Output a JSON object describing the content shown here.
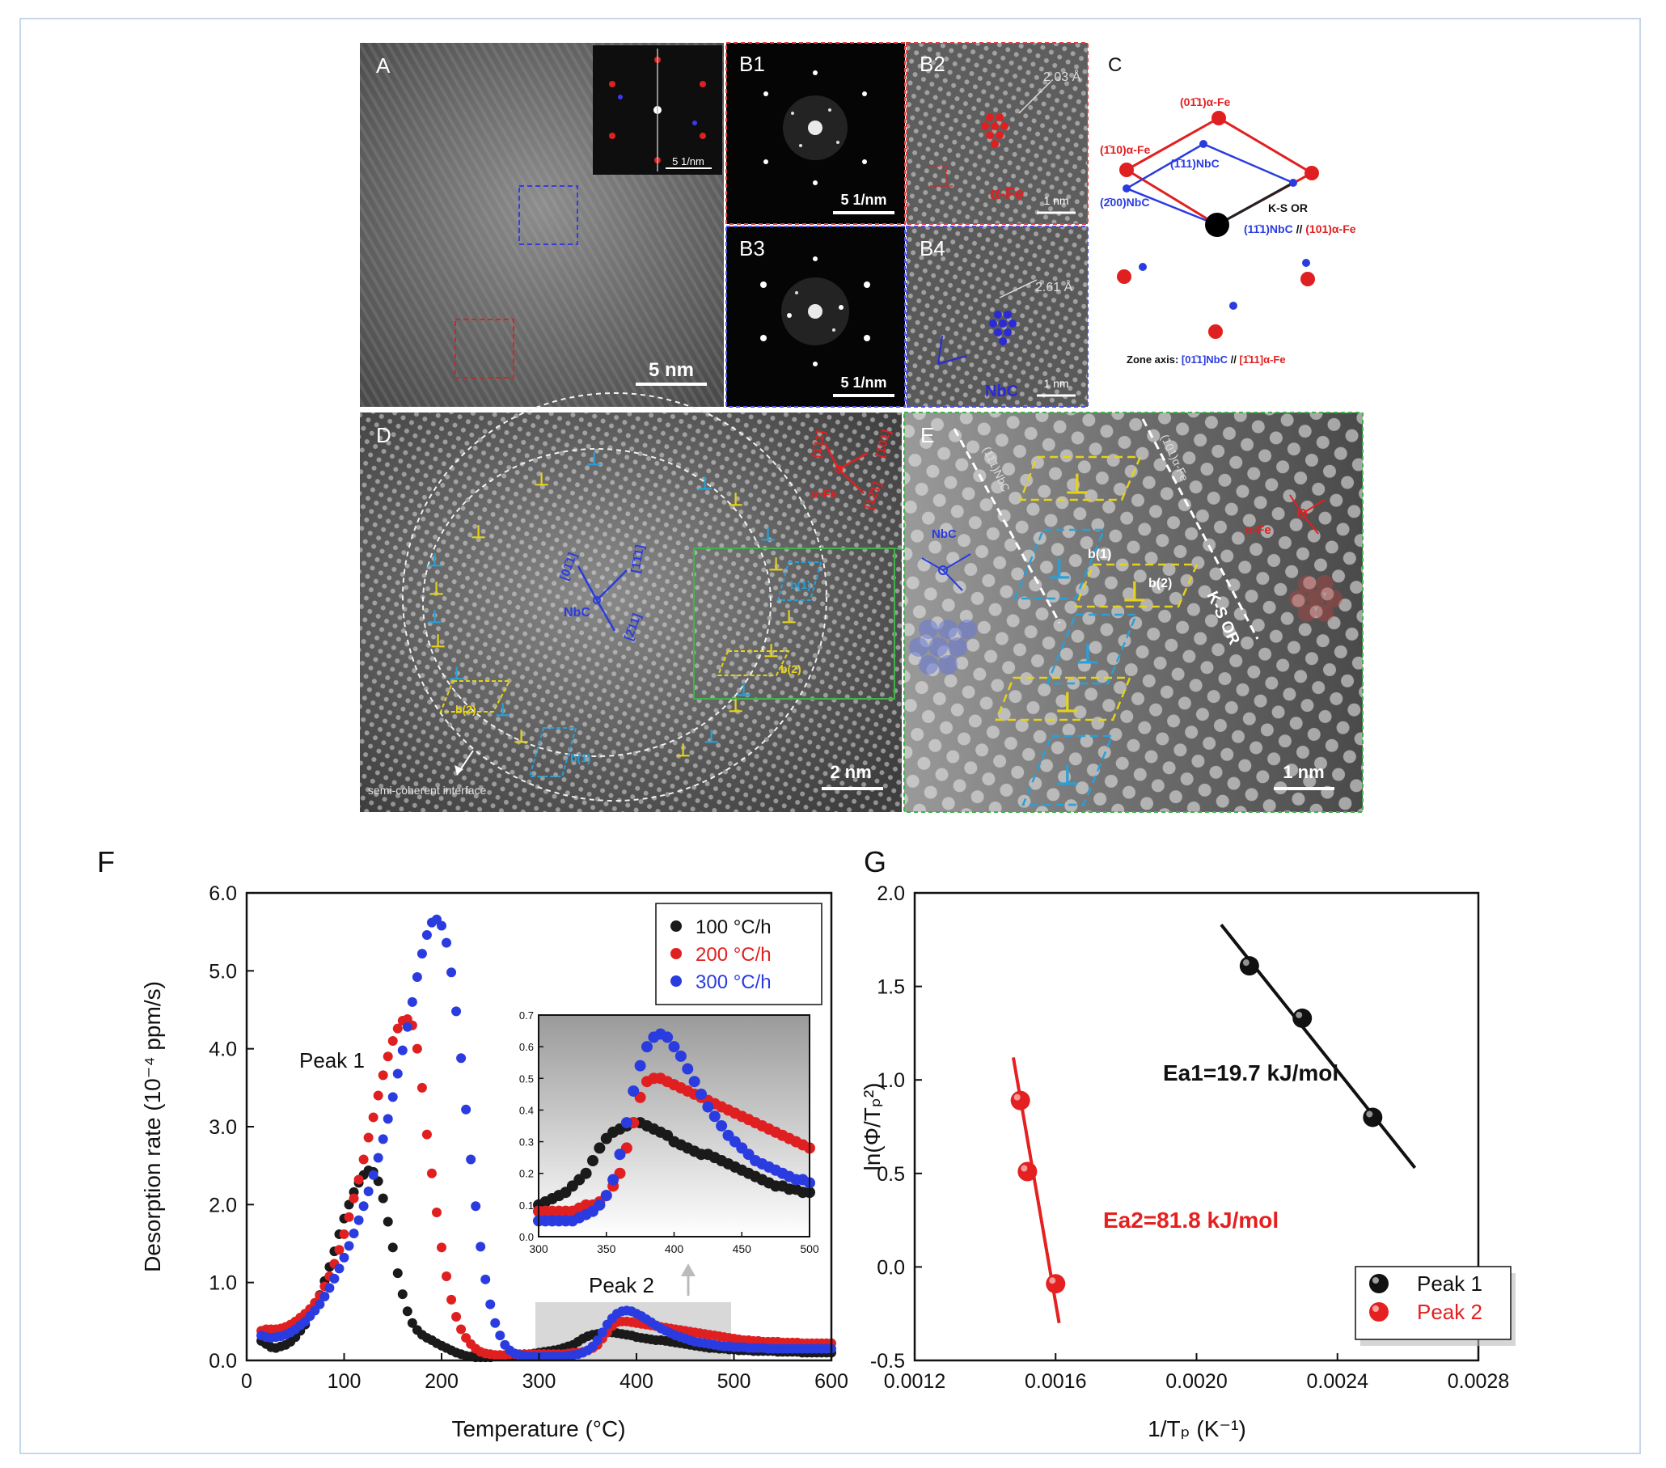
{
  "panels": {
    "A": {
      "letter": "A",
      "scale": "5 nm",
      "inset_scale": "5 1/nm"
    },
    "B1": {
      "letter": "B1",
      "scale": "5 1/nm"
    },
    "B2": {
      "letter": "B2",
      "spacing": "2.03 Å",
      "phase": "α-Fe",
      "scale": "1 nm"
    },
    "B3": {
      "letter": "B3",
      "scale": "5 1/nm"
    },
    "B4": {
      "letter": "B4",
      "spacing": "2.61 Å",
      "phase": "NbC",
      "scale": "1 nm"
    },
    "C": {
      "letter": "C",
      "l_011fe": "(01̄1)α-Fe",
      "l_110fe": "(1̄10)α-Fe",
      "l_111nbc": "(1̄11)NbC",
      "l_200nbc": "(2̄00)NbC",
      "ks": "K-S OR",
      "parallel_nbc": "(11̄1)NbC",
      "parallel_sep": " // ",
      "parallel_fe": "(101)α-Fe",
      "zone_prefix": "Zone axis: ",
      "zone_nbc": "[01̄1]NbC",
      "zone_sep": " // ",
      "zone_fe": "[1̄11]α-Fe"
    },
    "D": {
      "letter": "D",
      "scale": "2 nm",
      "fe": "α-Fe",
      "fe_a": "[1̄11]",
      "fe_b": "[101]",
      "fe_c": "[12̄1]",
      "nbc": "NbC",
      "nbc_a": "[01̄1]",
      "nbc_b": "[1̄1̄1]",
      "nbc_c": "[2̄11]",
      "interface": "semi-coherent interface",
      "b1": "b(1)",
      "b2": "b(2)"
    },
    "E": {
      "letter": "E",
      "scale": "1 nm",
      "nbc": "NbC",
      "fe": "α-Fe",
      "ks": "K-S OR",
      "plane_nbc": "(11̄1)NbC",
      "plane_fe": "(101)α-Fe",
      "b1": "b(1)",
      "b2": "b(2)"
    },
    "F": {
      "letter": "F"
    },
    "G": {
      "letter": "G"
    }
  },
  "colors": {
    "fe": "#e02020",
    "nbc": "#2020d0",
    "yellow": "#e6d21a",
    "cyan": "#28a0d8",
    "green": "#4cb84c"
  },
  "chart_data": [
    {
      "type": "scatter",
      "title": "",
      "xlabel": "Temperature (°C)",
      "ylabel": "Desorption rate (10⁻⁴ ppm/s)",
      "xlim": [
        0,
        600
      ],
      "ylim": [
        0,
        6
      ],
      "xticks": [
        0,
        100,
        200,
        300,
        400,
        500,
        600
      ],
      "yticks": [
        0,
        1,
        2,
        3,
        4,
        5,
        6
      ],
      "xtick_labels": [
        "0",
        "100",
        "200",
        "300",
        "400",
        "500",
        "600"
      ],
      "ytick_labels": [
        "0.0",
        "1.0",
        "2.0",
        "3.0",
        "4.0",
        "5.0",
        "6.0"
      ],
      "legend_position": "top-right",
      "annotations": [
        "Peak 1",
        "Peak 2"
      ],
      "series": [
        {
          "name": "100 °C/h",
          "color": "#1a1a1a",
          "x": [
            15,
            20,
            25,
            30,
            35,
            40,
            45,
            50,
            55,
            60,
            65,
            70,
            75,
            80,
            85,
            90,
            95,
            100,
            105,
            110,
            115,
            120,
            125,
            130,
            135,
            140,
            145,
            150,
            155,
            160,
            165,
            170,
            175,
            180,
            185,
            190,
            195,
            200,
            205,
            210,
            215,
            220,
            225,
            230,
            235,
            240,
            245,
            250,
            255,
            260,
            265,
            270,
            275,
            280,
            285,
            290,
            295,
            300,
            305,
            310,
            315,
            320,
            325,
            330,
            335,
            340,
            345,
            350,
            355,
            360,
            365,
            370,
            375,
            380,
            385,
            390,
            395,
            400,
            405,
            410,
            415,
            420,
            425,
            430,
            435,
            440,
            445,
            450,
            455,
            460,
            465,
            470,
            475,
            480,
            485,
            490,
            495,
            500,
            505,
            510,
            515,
            520,
            525,
            530,
            535,
            540,
            545,
            550,
            555,
            560,
            565,
            570,
            575,
            580,
            585,
            590,
            595,
            600
          ],
          "y": [
            0.25,
            0.21,
            0.17,
            0.16,
            0.18,
            0.2,
            0.24,
            0.3,
            0.38,
            0.46,
            0.58,
            0.7,
            0.84,
            1.02,
            1.2,
            1.4,
            1.62,
            1.82,
            2.0,
            2.16,
            2.28,
            2.38,
            2.44,
            2.42,
            2.3,
            2.08,
            1.78,
            1.45,
            1.12,
            0.85,
            0.63,
            0.48,
            0.39,
            0.33,
            0.29,
            0.26,
            0.22,
            0.19,
            0.16,
            0.13,
            0.1,
            0.08,
            0.06,
            0.05,
            0.04,
            0.04,
            0.04,
            0.04,
            0.05,
            0.05,
            0.06,
            0.06,
            0.07,
            0.07,
            0.08,
            0.08,
            0.09,
            0.1,
            0.11,
            0.12,
            0.13,
            0.14,
            0.16,
            0.18,
            0.2,
            0.24,
            0.28,
            0.31,
            0.33,
            0.34,
            0.35,
            0.36,
            0.36,
            0.35,
            0.34,
            0.33,
            0.32,
            0.3,
            0.29,
            0.28,
            0.27,
            0.26,
            0.26,
            0.25,
            0.24,
            0.23,
            0.22,
            0.21,
            0.2,
            0.19,
            0.18,
            0.17,
            0.16,
            0.16,
            0.15,
            0.15,
            0.14,
            0.14,
            0.13,
            0.13,
            0.13,
            0.12,
            0.12,
            0.12,
            0.12,
            0.12,
            0.11,
            0.11,
            0.11,
            0.11,
            0.11,
            0.1,
            0.1,
            0.1,
            0.1,
            0.1,
            0.1,
            0.1
          ]
        },
        {
          "name": "200 °C/h",
          "color": "#e02020",
          "x": [
            15,
            20,
            25,
            30,
            35,
            40,
            45,
            50,
            55,
            60,
            65,
            70,
            75,
            80,
            85,
            90,
            95,
            100,
            105,
            110,
            115,
            120,
            125,
            130,
            135,
            140,
            145,
            150,
            155,
            160,
            165,
            170,
            175,
            180,
            185,
            190,
            195,
            200,
            205,
            210,
            215,
            220,
            225,
            230,
            235,
            240,
            245,
            250,
            255,
            260,
            265,
            270,
            275,
            280,
            285,
            290,
            295,
            300,
            305,
            310,
            315,
            320,
            325,
            330,
            335,
            340,
            345,
            350,
            355,
            360,
            365,
            370,
            375,
            380,
            385,
            390,
            395,
            400,
            405,
            410,
            415,
            420,
            425,
            430,
            435,
            440,
            445,
            450,
            455,
            460,
            465,
            470,
            475,
            480,
            485,
            490,
            495,
            500,
            505,
            510,
            515,
            520,
            525,
            530,
            535,
            540,
            545,
            550,
            555,
            560,
            565,
            570,
            575,
            580,
            585,
            590,
            595,
            600
          ],
          "y": [
            0.38,
            0.4,
            0.4,
            0.4,
            0.41,
            0.43,
            0.46,
            0.5,
            0.55,
            0.6,
            0.66,
            0.74,
            0.83,
            0.95,
            1.08,
            1.24,
            1.42,
            1.62,
            1.84,
            2.08,
            2.32,
            2.58,
            2.86,
            3.12,
            3.4,
            3.66,
            3.9,
            4.1,
            4.26,
            4.36,
            4.38,
            4.3,
            4.0,
            3.5,
            2.9,
            2.4,
            1.9,
            1.45,
            1.08,
            0.78,
            0.56,
            0.4,
            0.29,
            0.21,
            0.15,
            0.11,
            0.09,
            0.08,
            0.07,
            0.07,
            0.07,
            0.08,
            0.08,
            0.08,
            0.08,
            0.08,
            0.08,
            0.08,
            0.08,
            0.08,
            0.08,
            0.08,
            0.08,
            0.09,
            0.1,
            0.1,
            0.11,
            0.13,
            0.16,
            0.2,
            0.28,
            0.36,
            0.44,
            0.49,
            0.5,
            0.5,
            0.49,
            0.48,
            0.47,
            0.46,
            0.45,
            0.44,
            0.43,
            0.42,
            0.41,
            0.4,
            0.39,
            0.38,
            0.37,
            0.36,
            0.35,
            0.34,
            0.33,
            0.32,
            0.31,
            0.3,
            0.29,
            0.28,
            0.27,
            0.26,
            0.26,
            0.25,
            0.25,
            0.24,
            0.24,
            0.24,
            0.24,
            0.23,
            0.23,
            0.23,
            0.23,
            0.22,
            0.22,
            0.22,
            0.22,
            0.22,
            0.22,
            0.22
          ]
        },
        {
          "name": "300 °C/h",
          "color": "#2a3ce0",
          "x": [
            15,
            20,
            25,
            30,
            35,
            40,
            45,
            50,
            55,
            60,
            65,
            70,
            75,
            80,
            85,
            90,
            95,
            100,
            105,
            110,
            115,
            120,
            125,
            130,
            135,
            140,
            145,
            150,
            155,
            160,
            165,
            170,
            175,
            180,
            185,
            190,
            195,
            200,
            205,
            210,
            215,
            220,
            225,
            230,
            235,
            240,
            245,
            250,
            255,
            260,
            265,
            270,
            275,
            280,
            285,
            290,
            295,
            300,
            305,
            310,
            315,
            320,
            325,
            330,
            335,
            340,
            345,
            350,
            355,
            360,
            365,
            370,
            375,
            380,
            385,
            390,
            395,
            400,
            405,
            410,
            415,
            420,
            425,
            430,
            435,
            440,
            445,
            450,
            455,
            460,
            465,
            470,
            475,
            480,
            485,
            490,
            495,
            500,
            505,
            510,
            515,
            520,
            525,
            530,
            535,
            540,
            545,
            550,
            555,
            560,
            565,
            570,
            575,
            580,
            585,
            590,
            595,
            600
          ],
          "y": [
            0.32,
            0.3,
            0.29,
            0.3,
            0.31,
            0.33,
            0.36,
            0.4,
            0.45,
            0.5,
            0.57,
            0.64,
            0.72,
            0.82,
            0.93,
            1.05,
            1.18,
            1.32,
            1.47,
            1.63,
            1.8,
            1.98,
            2.17,
            2.38,
            2.6,
            2.84,
            3.1,
            3.38,
            3.68,
            3.98,
            4.28,
            4.6,
            4.92,
            5.22,
            5.46,
            5.62,
            5.66,
            5.58,
            5.36,
            4.98,
            4.48,
            3.88,
            3.22,
            2.58,
            1.98,
            1.46,
            1.04,
            0.72,
            0.48,
            0.32,
            0.2,
            0.13,
            0.09,
            0.07,
            0.06,
            0.05,
            0.05,
            0.05,
            0.05,
            0.05,
            0.05,
            0.05,
            0.05,
            0.06,
            0.07,
            0.08,
            0.1,
            0.13,
            0.18,
            0.26,
            0.36,
            0.46,
            0.54,
            0.6,
            0.63,
            0.64,
            0.63,
            0.6,
            0.57,
            0.53,
            0.49,
            0.45,
            0.41,
            0.38,
            0.35,
            0.32,
            0.3,
            0.28,
            0.26,
            0.24,
            0.23,
            0.22,
            0.21,
            0.2,
            0.19,
            0.18,
            0.18,
            0.17,
            0.17,
            0.17,
            0.16,
            0.16,
            0.16,
            0.16,
            0.15,
            0.15,
            0.15,
            0.15,
            0.15,
            0.15,
            0.15,
            0.15,
            0.15,
            0.15,
            0.15,
            0.15,
            0.15,
            0.15
          ]
        }
      ],
      "inset": {
        "xlim": [
          300,
          500
        ],
        "ylim": [
          0,
          0.7
        ],
        "xticks": [
          300,
          350,
          400,
          450,
          500
        ],
        "yticks": [
          0,
          0.1,
          0.2,
          0.3,
          0.4,
          0.5,
          0.6,
          0.7
        ],
        "xtick_labels": [
          "300",
          "350",
          "400",
          "450",
          "500"
        ],
        "ytick_labels": [
          "0.0",
          "0.1",
          "0.2",
          "0.3",
          "0.4",
          "0.5",
          "0.6",
          "0.7"
        ]
      }
    },
    {
      "type": "scatter",
      "title": "",
      "xlabel": "1/Tₚ (K⁻¹)",
      "ylabel": "ln(Φ/Tₚ²)",
      "xlim": [
        0.0012,
        0.0028
      ],
      "ylim": [
        -0.5,
        2.0
      ],
      "xticks": [
        0.0012,
        0.0016,
        0.002,
        0.0024,
        0.0028
      ],
      "yticks": [
        -0.5,
        0,
        0.5,
        1,
        1.5,
        2
      ],
      "xtick_labels": [
        "0.0012",
        "0.0016",
        "0.0020",
        "0.0024",
        "0.0028"
      ],
      "ytick_labels": [
        "-0.5",
        "0.0",
        "0.5",
        "1.0",
        "1.5",
        "2.0"
      ],
      "legend_position": "bottom-right",
      "series": [
        {
          "name": "Peak 1",
          "color": "#111111",
          "x": [
            0.00215,
            0.0023,
            0.0025
          ],
          "y": [
            1.61,
            1.33,
            0.8
          ],
          "fit_x": [
            0.00207,
            0.00262
          ],
          "fit_y": [
            1.83,
            0.53
          ],
          "label": "Ea1=19.7 kJ/mol"
        },
        {
          "name": "Peak 2",
          "color": "#e52020",
          "x": [
            0.0015,
            0.00152,
            0.0016
          ],
          "y": [
            0.89,
            0.51,
            -0.09
          ],
          "fit_x": [
            0.00148,
            0.00161
          ],
          "fit_y": [
            1.12,
            -0.3
          ],
          "label": "Ea2=81.8 kJ/mol"
        }
      ]
    }
  ]
}
